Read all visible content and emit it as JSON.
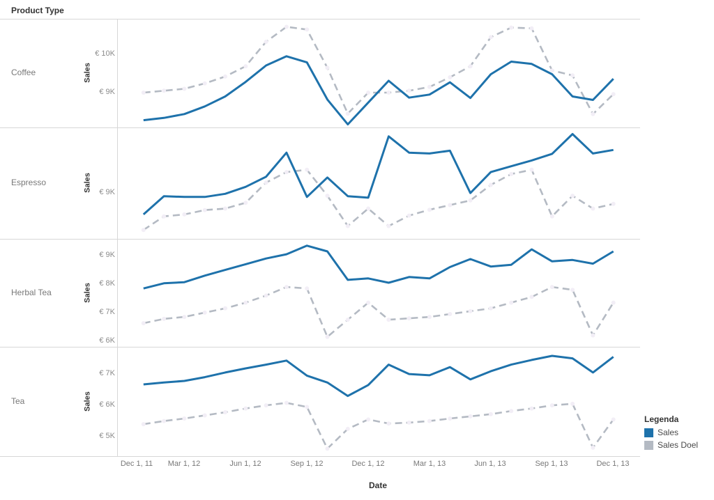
{
  "header": {
    "title": "Product Type"
  },
  "axis": {
    "x_title": "Date",
    "x_tick_labels": [
      "Dec 1, 11",
      "Mar 1, 12",
      "Jun 1, 12",
      "Sep 1, 12",
      "Dec 1, 12",
      "Mar 1, 13",
      "Jun 1, 13",
      "Sep 1, 13",
      "Dec 1, 13"
    ],
    "y_title": "Sales",
    "currency_prefix": "€"
  },
  "legend": {
    "title": "Legenda",
    "items": [
      {
        "label": "Sales",
        "color": "#1e72ab",
        "style": "solid"
      },
      {
        "label": "Sales Doel",
        "color": "#b4bac3",
        "style": "dashed"
      }
    ]
  },
  "colors": {
    "border": "#d7d7d7",
    "text_muted": "#787878",
    "text_dark": "#333333",
    "marker_dot": "#f2eef6",
    "background": "#ffffff"
  },
  "chart_data": {
    "type": "line",
    "title": "",
    "xlabel": "Date",
    "x": [
      "Jan 1, 12",
      "Feb 1, 12",
      "Mar 1, 12",
      "Apr 1, 12",
      "May 1, 12",
      "Jun 1, 12",
      "Jul 1, 12",
      "Aug 1, 12",
      "Sep 1, 12",
      "Oct 1, 12",
      "Nov 1, 12",
      "Dec 1, 12",
      "Jan 1, 13",
      "Feb 1, 13",
      "Mar 1, 13",
      "Apr 1, 13",
      "May 1, 13",
      "Jun 1, 13",
      "Jul 1, 13",
      "Aug 1, 13",
      "Sep 1, 13",
      "Oct 1, 13",
      "Nov 1, 13",
      "Dec 1, 13"
    ],
    "x_axis_shown_ticks": [
      "Dec 1, 11",
      "Mar 1, 12",
      "Jun 1, 12",
      "Sep 1, 12",
      "Dec 1, 12",
      "Mar 1, 13",
      "Jun 1, 13",
      "Sep 1, 13",
      "Dec 1, 13"
    ],
    "units": "K EUR",
    "legend_position": "bottom-right",
    "grid": false,
    "panels": [
      {
        "category": "Coffee",
        "y_title": "Sales",
        "ylim": [
          8.09,
          10.93
        ],
        "yticks": [
          {
            "value": 10,
            "label": "€ 10K"
          },
          {
            "value": 9,
            "label": "€ 9K"
          }
        ],
        "series": [
          {
            "name": "Sales",
            "color": "#1e72ab",
            "style": "solid",
            "values": [
              8.28,
              8.34,
              8.44,
              8.64,
              8.9,
              9.28,
              9.71,
              9.95,
              9.79,
              8.82,
              8.17,
              8.74,
              9.31,
              8.87,
              8.95,
              9.27,
              8.86,
              9.48,
              9.81,
              9.75,
              9.48,
              8.9,
              8.81,
              9.36
            ]
          },
          {
            "name": "Sales Doel",
            "color": "#b4bac3",
            "style": "dashed",
            "values": [
              9.0,
              9.05,
              9.1,
              9.24,
              9.42,
              9.69,
              10.33,
              10.72,
              10.65,
              9.65,
              8.45,
              9.0,
              9.0,
              9.05,
              9.15,
              9.4,
              9.69,
              10.45,
              10.7,
              10.68,
              9.58,
              9.45,
              8.44,
              8.96
            ]
          }
        ]
      },
      {
        "category": "Espresso",
        "y_title": "Sales",
        "ylim": [
          7.82,
          10.69
        ],
        "yticks": [
          {
            "value": 9,
            "label": "€ 9K"
          }
        ],
        "series": [
          {
            "name": "Sales",
            "color": "#1e72ab",
            "style": "solid",
            "values": [
              8.45,
              8.92,
              8.9,
              8.9,
              8.98,
              9.16,
              9.42,
              10.04,
              8.9,
              9.4,
              8.92,
              8.88,
              10.46,
              10.04,
              10.02,
              10.09,
              9.0,
              9.54,
              9.69,
              9.84,
              10.01,
              10.52,
              10.02,
              10.11
            ]
          },
          {
            "name": "Sales Doel",
            "color": "#b4bac3",
            "style": "dashed",
            "values": [
              8.05,
              8.4,
              8.45,
              8.56,
              8.6,
              8.75,
              9.27,
              9.54,
              9.6,
              8.93,
              8.15,
              8.6,
              8.15,
              8.42,
              8.57,
              8.69,
              8.81,
              9.21,
              9.49,
              9.6,
              8.4,
              8.93,
              8.6,
              8.72
            ]
          }
        ]
      },
      {
        "category": "Herbal Tea",
        "y_title": "Sales",
        "ylim": [
          5.8,
          9.59
        ],
        "yticks": [
          {
            "value": 9,
            "label": "€ 9K"
          },
          {
            "value": 8,
            "label": "€ 8K"
          },
          {
            "value": 7,
            "label": "€ 7K"
          },
          {
            "value": 6,
            "label": "€ 6K"
          }
        ],
        "series": [
          {
            "name": "Sales",
            "color": "#1e72ab",
            "style": "solid",
            "values": [
              7.85,
              8.03,
              8.07,
              8.3,
              8.5,
              8.7,
              8.9,
              9.05,
              9.35,
              9.15,
              8.15,
              8.2,
              8.05,
              8.25,
              8.2,
              8.6,
              8.88,
              8.62,
              8.68,
              9.22,
              8.8,
              8.85,
              8.72,
              9.15
            ]
          },
          {
            "name": "Sales Doel",
            "color": "#b4bac3",
            "style": "dashed",
            "values": [
              6.63,
              6.78,
              6.85,
              7.0,
              7.15,
              7.35,
              7.6,
              7.9,
              7.85,
              6.15,
              6.75,
              7.35,
              6.75,
              6.8,
              6.85,
              6.95,
              7.05,
              7.15,
              7.35,
              7.55,
              7.9,
              7.8,
              6.2,
              7.35
            ]
          }
        ]
      },
      {
        "category": "Tea",
        "y_title": "Sales",
        "ylim": [
          4.38,
          7.87
        ],
        "yticks": [
          {
            "value": 7,
            "label": "€ 7K"
          },
          {
            "value": 6,
            "label": "€ 6K"
          },
          {
            "value": 5,
            "label": "€ 5K"
          }
        ],
        "series": [
          {
            "name": "Sales",
            "color": "#1e72ab",
            "style": "solid",
            "values": [
              6.67,
              6.73,
              6.78,
              6.9,
              7.05,
              7.18,
              7.3,
              7.43,
              6.95,
              6.73,
              6.3,
              6.65,
              7.3,
              7.0,
              6.96,
              7.22,
              6.83,
              7.09,
              7.3,
              7.45,
              7.58,
              7.5,
              7.05,
              7.55
            ]
          },
          {
            "name": "Sales Doel",
            "color": "#b4bac3",
            "style": "dashed",
            "values": [
              5.4,
              5.5,
              5.58,
              5.68,
              5.78,
              5.9,
              6.0,
              6.08,
              5.95,
              4.62,
              5.25,
              5.55,
              5.42,
              5.45,
              5.5,
              5.58,
              5.65,
              5.72,
              5.82,
              5.9,
              6.0,
              6.05,
              4.65,
              5.55
            ]
          }
        ]
      }
    ]
  }
}
